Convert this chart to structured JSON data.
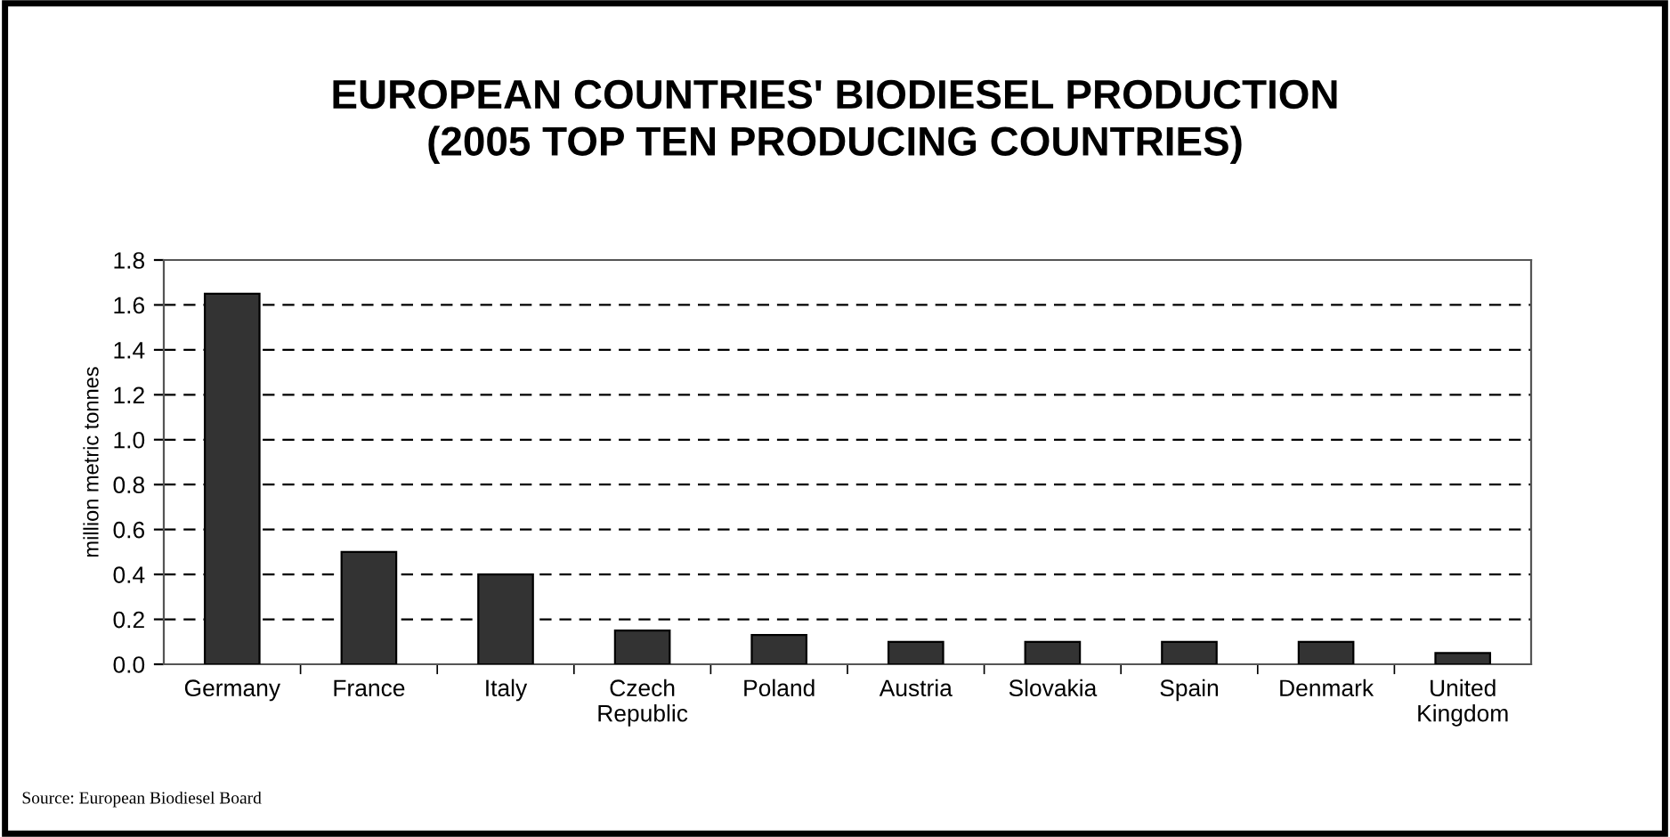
{
  "chart_data": {
    "type": "bar",
    "title": "EUROPEAN COUNTRIES' BIODIESEL PRODUCTION\n(2005 TOP TEN PRODUCING COUNTRIES)",
    "ylabel": "million metric tonnes",
    "categories": [
      "Germany",
      "France",
      "Italy",
      "Czech\nRepublic",
      "Poland",
      "Austria",
      "Slovakia",
      "Spain",
      "Denmark",
      "United\nKingdom"
    ],
    "values": [
      1.65,
      0.5,
      0.4,
      0.15,
      0.13,
      0.1,
      0.1,
      0.1,
      0.1,
      0.05
    ],
    "color": "#333333",
    "ylim": [
      0,
      1.8
    ],
    "yticks": [
      {
        "value": 0,
        "label": "0.0"
      },
      {
        "value": 0.2,
        "label": "0.2"
      },
      {
        "value": 0.4,
        "label": "0.4"
      },
      {
        "value": 0.6,
        "label": "0.6"
      },
      {
        "value": 0.8,
        "label": "0.8"
      },
      {
        "value": 1.0,
        "label": "1.0"
      },
      {
        "value": 1.2,
        "label": "1.2"
      },
      {
        "value": 1.4,
        "label": "1.4"
      },
      {
        "value": 1.6,
        "label": "1.6"
      },
      {
        "value": 1.8,
        "label": "1.8"
      }
    ],
    "grid": "y",
    "line_style": "dashed",
    "annotations": [
      "Source: European Biodiesel Board"
    ]
  }
}
